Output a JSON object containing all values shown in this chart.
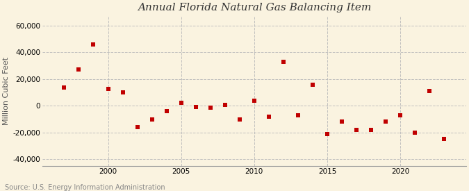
{
  "title": "Annual Florida Natural Gas Balancing Item",
  "ylabel": "Million Cubic Feet",
  "source": "Source: U.S. Energy Information Administration",
  "background_color": "#faf3e0",
  "years": [
    1997,
    1998,
    1999,
    2000,
    2001,
    2002,
    2003,
    2004,
    2005,
    2006,
    2007,
    2008,
    2009,
    2010,
    2011,
    2012,
    2013,
    2014,
    2015,
    2016,
    2017,
    2018,
    2019,
    2020,
    2021,
    2022,
    2023
  ],
  "values": [
    13500,
    27000,
    46000,
    12500,
    10000,
    -16000,
    -10000,
    -4000,
    2000,
    -1000,
    -1500,
    500,
    -10000,
    4000,
    -8000,
    33000,
    -7000,
    16000,
    -21000,
    -12000,
    -18000,
    -18000,
    -12000,
    -7000,
    -20000,
    11000,
    -25000
  ],
  "marker_color": "#c00000",
  "marker": "s",
  "marker_size": 4,
  "ylim": [
    -45000,
    67000
  ],
  "yticks": [
    -40000,
    -20000,
    0,
    20000,
    40000,
    60000
  ],
  "xlim": [
    1995.5,
    2024.5
  ],
  "xticks": [
    2000,
    2005,
    2010,
    2015,
    2020
  ],
  "grid_color": "#bbbbbb",
  "title_fontsize": 11,
  "label_fontsize": 8,
  "tick_fontsize": 7.5,
  "source_fontsize": 7
}
